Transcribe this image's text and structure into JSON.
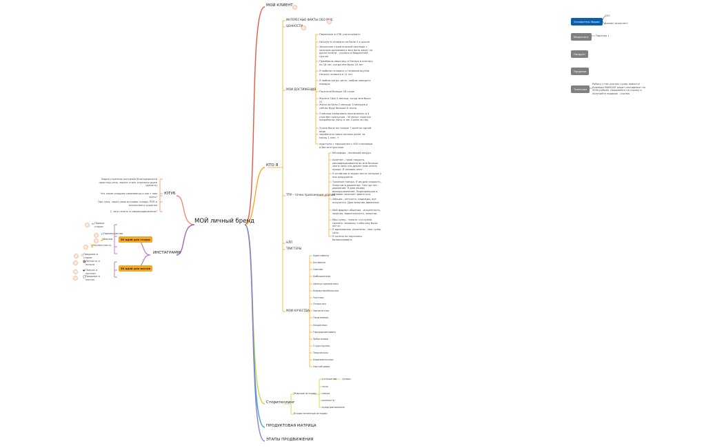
{
  "center": "МОЙ личный бренд",
  "client": {
    "label": "МОЙ КЛИЕНТ"
  },
  "who": {
    "label": "КТО Я",
    "facts": "ИНТЕРЕСНЫЕ ФАКТЫ ОБО МНЕ",
    "values": "ЦЕННОСТИ",
    "achievements": {
      "label": "МОИ ДОСТИЖЕНИЯ",
      "items": [
        "Переехала в СПБ учиться/жить",
        "Ни разу в четверти не было 3 в школе",
        "Закончила строительный колледж с красным дипломом и моя фото висит на доске почёта - училась в бюджетной группе",
        "Приобрела квартиру в Питере в ипотеку на 18 лет, когда мне было 20 лет",
        "Я любила готовить и готовила вкусно. Начала готовить в 11 лет",
        "Я люблю когда чисто, люблю наводить порядок",
        "Посетила больше 28 стран",
        "Жила в США 4 месяца, когда мне было 21",
        "Жила на Бали 2 месяца/ 5 месяцев и сейчас буду больше 8 точно",
        "2 месяца ежедневно просыпалась в 4 утра без пропусков - 30 минут практик проработки (хочу и так 3 раза за год",
        "3 разa была на голоде 7 дней на одной воде",
        "заработала своих личных денег за месяц 1 млн. +",
        "прыгнула с парашютом с 900 м впервые и без инструктора"
      ]
    },
    "tpu": {
      "label": "ТПУ - точки приложения усилий",
      "items": [
        "Метафора - несвежий воздух",
        "Архетип - проф подруга, квалифицированна во мне больше чем в папе,что делает мою жизнь проще. Я человек опет",
        "Я оставляю в людях места которые у них разрушены",
        "Тяжелые поезда. Я им даю скорость. Энергию в движении. Там где нет движения. Я даю людям вооодушевление. Подпирающая и человек начинает двигаться.",
        "Эмоция - легкость, надежды, все получится. Даю энергию движения",
        "Мой формат общения - искренность, энергия, вовлеченность, эмпатия.",
        "Моя супер - понять что нужно сделать человеку чтобы ему было легче.",
        "Я вдохновляю. Архетипы - моя супер сила",
        "Я хотела но научилась балансировать"
      ]
    },
    "nlp": "НЛП",
    "triggers": "ТРИГГЕРЫ",
    "qualities": {
      "label": "МОИ КАЧЕСТВА",
      "items": [
        "Адаптивная",
        "Активная",
        "Смелая",
        "Амбициозная",
        "Целеустремленная",
        "Коммуникабельная",
        "Честная",
        "Открытая",
        "Эмпатичная",
        "Позитивная",
        "Искренняя",
        "Предприимчивая",
        "Заботливая",
        "Структурная",
        "Творческая",
        "Харизматичная",
        "Настойчивая"
      ]
    }
  },
  "story": {
    "label": "Сторителлинг",
    "bold": "Жирные истории",
    "bold_items": [
      "отношения",
      "тело",
      "семья",
      "ценности",
      "предпринимание"
    ],
    "done": "готово",
    "secondary": "Второстепенные истории"
  },
  "matrix": "ПРОДУКТОВАЯ МАТРИЦА",
  "stages": "ЭТАПЫ ПРОДВИЖЕНИЯ",
  "youtube": {
    "label": "ЮТУБ",
    "items": [
      "Видео утренних ритуалов (благодарности практику речь, может стоит отдельно даже сделать)",
      "Что такое синдром самозванца и как с ним жить?",
      "Про тело, через свою историю голода, РПП и осознанного кушанья",
      "С чего начать в самопродвижении?"
    ]
  },
  "instagram": {
    "label": "ИНСТАГРАММ",
    "stories": "50 идей для сторис",
    "posts": "50 идей для постов",
    "story_items": [
      "Первые сторис",
      "Преимущества",
      "Фишки",
      "Экспертность",
      "Продажи в сторис"
    ],
    "post_items": [
      "Лёгкость и польза",
      "Польза и эксперт",
      "Продажи в постах"
    ]
  },
  "team": {
    "founder": "Основатель Марии",
    "founder_items": [
      "CEO",
      "Бизнес ассистент"
    ],
    "marketing": "Маркетинг",
    "partner": "Партнер 1",
    "product": "Продукт",
    "sales": "Продажи",
    "telegram": "Телеграм",
    "telegram_note": "Работу у нас для вас супер новость!Команда MARIQUE дарит сертификат на 3000 рублей. Нажимайте на ссылку и получайте подарок - ссылка"
  },
  "colors": {
    "client": "#e8553e",
    "who": "#f7a823",
    "story": "#c8d43a",
    "matrix": "#2aa7d6",
    "stages": "#8a7ad8",
    "youtube": "#f28a6a",
    "instagram": "#a861c0",
    "founder": "#0c5ea8",
    "box": "#808080"
  }
}
